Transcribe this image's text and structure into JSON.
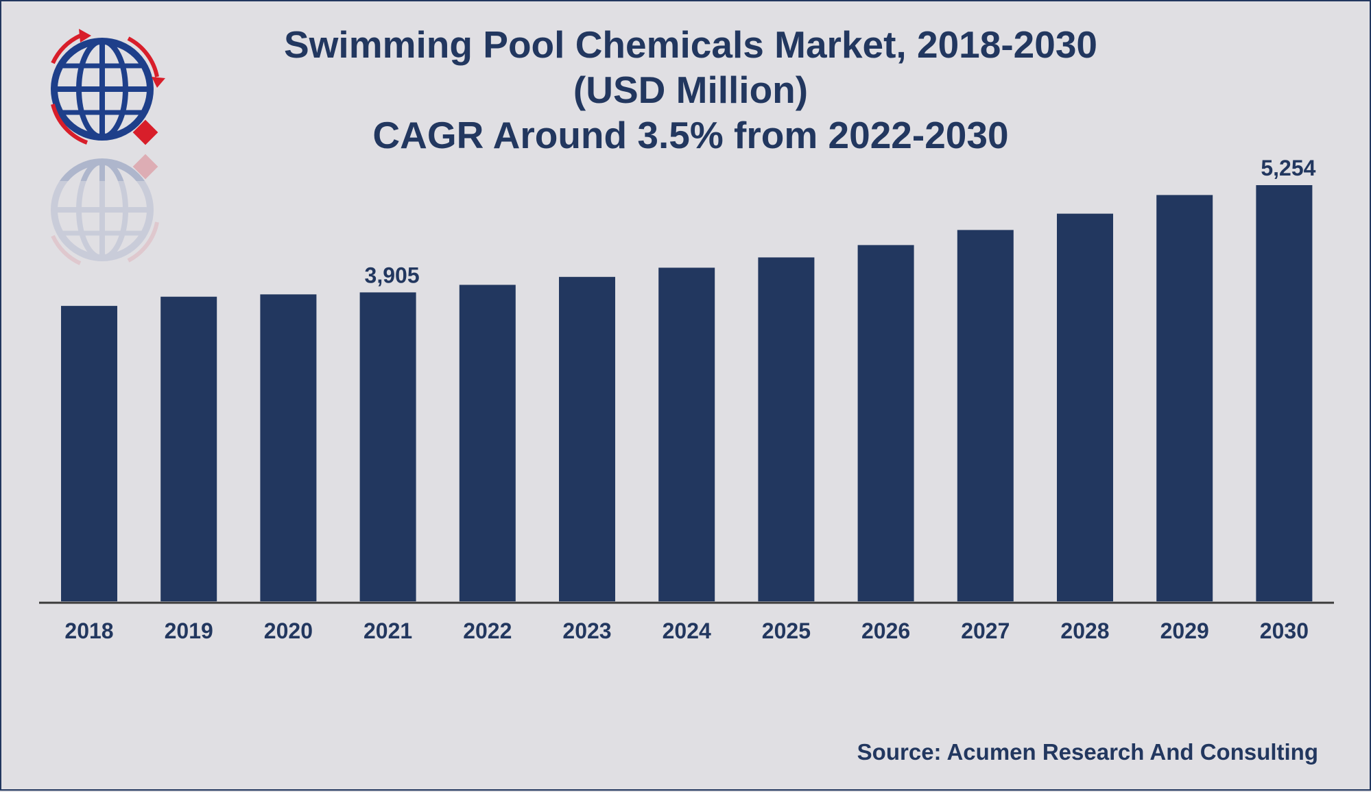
{
  "colors": {
    "background": "#e0dfe3",
    "bar": "#22375f",
    "text": "#22375f",
    "logo_globe": "#1e3f8a",
    "logo_accent": "#d81e2a"
  },
  "logo": {
    "icon": "globe-with-arrows-icon"
  },
  "header": {
    "title_line1": "Swimming Pool Chemicals Market, 2018-2030",
    "title_line2": "(USD Million)",
    "title_line3": "CAGR Around 3.5% from 2022-2030"
  },
  "footer": {
    "source": "Source: Acumen Research And Consulting"
  },
  "chart_data": {
    "type": "bar",
    "title": "Swimming Pool Chemicals Market, 2018-2030 (USD Million) CAGR Around 3.5% from 2022-2030",
    "xlabel": "",
    "ylabel": "",
    "categories": [
      "2018",
      "2019",
      "2020",
      "2021",
      "2022",
      "2023",
      "2024",
      "2025",
      "2026",
      "2027",
      "2028",
      "2029",
      "2030"
    ],
    "values": [
      3735,
      3850,
      3880,
      3905,
      4000,
      4100,
      4215,
      4345,
      4500,
      4690,
      4895,
      5130,
      5254
    ],
    "data_labels": [
      {
        "category": "2021",
        "text": "3,905"
      },
      {
        "category": "2030",
        "text": "5,254"
      }
    ],
    "ylim": [
      0,
      5254
    ],
    "grid": false,
    "legend": "none"
  }
}
